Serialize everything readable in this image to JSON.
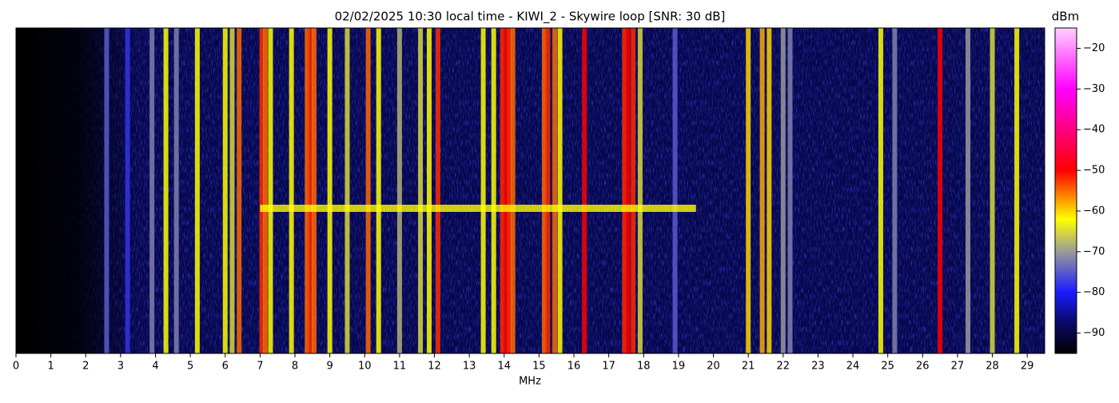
{
  "chart_data": {
    "type": "waterfall",
    "title": "02/02/2025 10:30 local time - KIWI_2 - Skywire loop [SNR: 30 dB]",
    "xlabel": "MHz",
    "colorbar_label": "dBm",
    "xlim": [
      0,
      29.5
    ],
    "xticks": [
      0,
      1,
      2,
      3,
      4,
      5,
      6,
      7,
      8,
      9,
      10,
      11,
      12,
      13,
      14,
      15,
      16,
      17,
      18,
      19,
      20,
      21,
      22,
      23,
      24,
      25,
      26,
      27,
      28,
      29
    ],
    "clim": [
      -95,
      -15
    ],
    "cticks": [
      {
        "value": -90,
        "label": "−90"
      },
      {
        "value": -80,
        "label": "−80"
      },
      {
        "value": -70,
        "label": "−70"
      },
      {
        "value": -60,
        "label": "−60"
      },
      {
        "value": -50,
        "label": "−50"
      },
      {
        "value": -40,
        "label": "−40"
      },
      {
        "value": -30,
        "label": "−30"
      },
      {
        "value": -20,
        "label": "−20"
      }
    ],
    "colormap": [
      {
        "value": -95,
        "color": "#000000"
      },
      {
        "value": -87,
        "color": "#0a0a70"
      },
      {
        "value": -80,
        "color": "#1a1aff"
      },
      {
        "value": -70,
        "color": "#9a9a9a"
      },
      {
        "value": -62,
        "color": "#ffff00"
      },
      {
        "value": -50,
        "color": "#ff0000"
      },
      {
        "value": -30,
        "color": "#ff00ff"
      },
      {
        "value": -15,
        "color": "#ffd0ff"
      }
    ],
    "signals": {
      "x": [
        2.6,
        3.2,
        3.9,
        4.3,
        4.6,
        5.2,
        6.0,
        6.2,
        6.4,
        7.05,
        7.15,
        7.3,
        7.9,
        8.35,
        8.45,
        8.55,
        9.0,
        9.5,
        10.1,
        10.4,
        11.0,
        11.6,
        11.85,
        12.1,
        13.4,
        13.7,
        13.95,
        14.05,
        14.15,
        14.25,
        15.15,
        15.25,
        15.45,
        15.6,
        16.3,
        17.45,
        17.55,
        17.7,
        17.9,
        18.9,
        21.0,
        21.4,
        21.6,
        22.0,
        22.2,
        24.8,
        25.2,
        26.5,
        27.3,
        28.0,
        28.7
      ],
      "values": [
        -75,
        -78,
        -72,
        -62,
        -72,
        -62,
        -62,
        -65,
        -55,
        -52,
        -55,
        -62,
        -62,
        -55,
        -52,
        -55,
        -62,
        -65,
        -55,
        -62,
        -68,
        -65,
        -62,
        -52,
        -62,
        -62,
        -52,
        -50,
        -52,
        -55,
        -55,
        -52,
        -55,
        -62,
        -50,
        -52,
        -50,
        -52,
        -65,
        -75,
        -60,
        -58,
        -60,
        -70,
        -72,
        -62,
        -72,
        -50,
        -70,
        -65,
        -62
      ]
    },
    "horizontal_signal": {
      "x": [
        7.0,
        19.5
      ],
      "value": -62
    }
  }
}
